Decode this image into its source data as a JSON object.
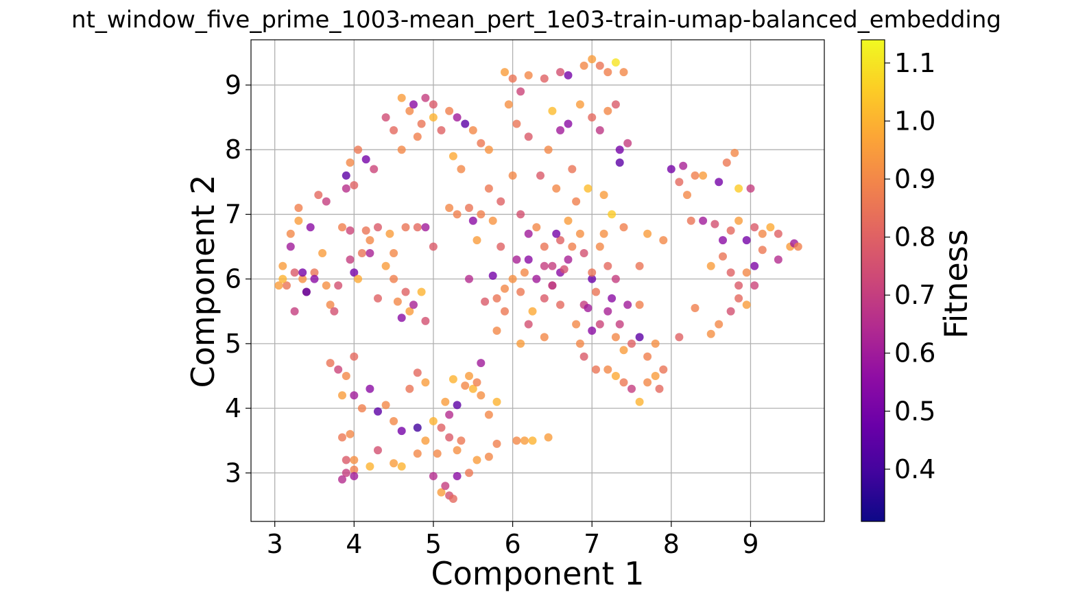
{
  "chart_data": {
    "type": "scatter",
    "title": "nt_window_five_prime_1003-mean_pert_1e03-train-umap-balanced_embedding",
    "xlabel": "Component 1",
    "ylabel": "Component 2",
    "xlim": [
      2.7,
      9.93
    ],
    "ylim": [
      2.25,
      9.7
    ],
    "xticks": [
      "3",
      "4",
      "5",
      "6",
      "7",
      "8",
      "9"
    ],
    "yticks": [
      "3",
      "4",
      "5",
      "6",
      "7",
      "8",
      "9"
    ],
    "grid": true,
    "colormap": "plasma",
    "colorbar": {
      "label": "Fitness",
      "range": [
        0.31,
        1.14
      ],
      "ticks": [
        "0.4",
        "0.5",
        "0.6",
        "0.7",
        "0.8",
        "0.9",
        "1.0",
        "1.1"
      ]
    },
    "points": [
      [
        3.1,
        6.2,
        0.95
      ],
      [
        3.15,
        5.9,
        0.85
      ],
      [
        3.25,
        6.1,
        0.78
      ],
      [
        3.3,
        7.1,
        0.88
      ],
      [
        3.35,
        6.0,
        0.92
      ],
      [
        3.4,
        5.8,
        0.8
      ],
      [
        3.45,
        6.8,
        0.55
      ],
      [
        3.5,
        6.1,
        0.85
      ],
      [
        3.6,
        6.4,
        0.95
      ],
      [
        3.7,
        5.6,
        0.9
      ],
      [
        3.8,
        5.9,
        0.75
      ],
      [
        3.85,
        6.8,
        0.88
      ],
      [
        3.95,
        6.3,
        0.7
      ],
      [
        4.0,
        6.1,
        0.5
      ],
      [
        4.05,
        6.0,
        0.98
      ],
      [
        4.1,
        6.4,
        0.85
      ],
      [
        4.2,
        6.6,
        0.9
      ],
      [
        4.3,
        5.7,
        0.8
      ],
      [
        4.4,
        6.2,
        0.95
      ],
      [
        4.5,
        6.0,
        0.88
      ],
      [
        3.2,
        6.5,
        0.6
      ],
      [
        3.55,
        7.3,
        0.82
      ],
      [
        3.65,
        7.2,
        0.7
      ],
      [
        3.9,
        7.6,
        0.45
      ],
      [
        3.95,
        7.8,
        0.9
      ],
      [
        4.05,
        8.0,
        0.86
      ],
      [
        4.15,
        7.85,
        0.5
      ],
      [
        4.25,
        7.7,
        0.72
      ],
      [
        3.9,
        7.4,
        0.66
      ],
      [
        4.0,
        7.45,
        0.8
      ],
      [
        4.4,
        8.5,
        0.74
      ],
      [
        4.6,
        8.8,
        0.95
      ],
      [
        4.7,
        8.6,
        0.9
      ],
      [
        4.75,
        8.7,
        0.55
      ],
      [
        4.85,
        8.4,
        0.85
      ],
      [
        4.9,
        8.8,
        0.7
      ],
      [
        5.0,
        8.5,
        1.0
      ],
      [
        5.1,
        8.3,
        0.8
      ],
      [
        5.2,
        8.6,
        0.88
      ],
      [
        5.3,
        8.5,
        0.6
      ],
      [
        5.4,
        8.4,
        0.45
      ],
      [
        5.5,
        8.3,
        0.9
      ],
      [
        5.6,
        8.1,
        0.86
      ],
      [
        5.7,
        8.0,
        0.93
      ],
      [
        4.5,
        8.3,
        0.82
      ],
      [
        4.6,
        8.0,
        0.9
      ],
      [
        4.8,
        8.2,
        0.88
      ],
      [
        5.0,
        8.7,
        0.78
      ],
      [
        5.25,
        7.9,
        0.98
      ],
      [
        5.35,
        7.7,
        0.9
      ],
      [
        5.9,
        9.2,
        0.95
      ],
      [
        6.0,
        9.1,
        0.85
      ],
      [
        6.1,
        8.9,
        0.72
      ],
      [
        6.2,
        9.15,
        0.9
      ],
      [
        6.4,
        9.1,
        0.8
      ],
      [
        6.6,
        9.2,
        0.75
      ],
      [
        6.7,
        9.15,
        0.5
      ],
      [
        6.9,
        9.3,
        0.9
      ],
      [
        7.0,
        9.4,
        0.95
      ],
      [
        7.1,
        9.3,
        0.85
      ],
      [
        7.2,
        9.2,
        0.88
      ],
      [
        7.3,
        9.35,
        1.1
      ],
      [
        7.4,
        9.2,
        0.9
      ],
      [
        6.5,
        8.6,
        1.02
      ],
      [
        6.6,
        8.3,
        0.6
      ],
      [
        6.7,
        8.4,
        0.55
      ],
      [
        6.85,
        8.7,
        0.95
      ],
      [
        7.0,
        8.5,
        0.82
      ],
      [
        7.1,
        8.3,
        0.68
      ],
      [
        7.2,
        8.6,
        0.9
      ],
      [
        7.3,
        8.7,
        0.78
      ],
      [
        7.35,
        8.0,
        0.5
      ],
      [
        7.35,
        7.8,
        0.45
      ],
      [
        7.45,
        8.1,
        0.7
      ],
      [
        5.95,
        8.7,
        0.92
      ],
      [
        6.05,
        8.4,
        0.85
      ],
      [
        6.2,
        8.2,
        0.78
      ],
      [
        6.45,
        8.0,
        0.9
      ],
      [
        5.7,
        7.4,
        0.86
      ],
      [
        5.85,
        7.2,
        0.8
      ],
      [
        6.0,
        7.6,
        0.9
      ],
      [
        6.1,
        7.0,
        0.75
      ],
      [
        6.2,
        6.7,
        0.6
      ],
      [
        6.3,
        6.8,
        0.9
      ],
      [
        6.4,
        6.5,
        0.85
      ],
      [
        6.5,
        6.2,
        0.7
      ],
      [
        6.6,
        6.1,
        0.55
      ],
      [
        6.7,
        6.9,
        0.95
      ],
      [
        6.8,
        7.2,
        0.88
      ],
      [
        6.9,
        6.4,
        0.75
      ],
      [
        7.0,
        6.0,
        0.48
      ],
      [
        7.1,
        6.5,
        0.9
      ],
      [
        7.2,
        6.2,
        0.82
      ],
      [
        7.3,
        6.0,
        0.7
      ],
      [
        6.0,
        6.0,
        0.92
      ],
      [
        6.1,
        5.8,
        0.86
      ],
      [
        6.25,
        5.5,
        0.98
      ],
      [
        6.4,
        5.7,
        0.78
      ],
      [
        6.5,
        5.9,
        0.9
      ],
      [
        6.6,
        6.6,
        0.8
      ],
      [
        6.7,
        6.3,
        0.62
      ],
      [
        6.8,
        5.3,
        0.9
      ],
      [
        6.9,
        5.6,
        0.7
      ],
      [
        7.05,
        5.8,
        0.85
      ],
      [
        7.15,
        6.7,
        0.92
      ],
      [
        7.25,
        7.0,
        1.05
      ],
      [
        7.4,
        6.8,
        0.88
      ],
      [
        6.35,
        7.6,
        0.78
      ],
      [
        6.55,
        7.4,
        0.9
      ],
      [
        6.75,
        7.7,
        0.85
      ],
      [
        6.95,
        7.4,
        1.02
      ],
      [
        7.15,
        7.3,
        0.95
      ],
      [
        5.85,
        6.5,
        0.8
      ],
      [
        5.75,
        6.9,
        0.93
      ],
      [
        5.6,
        7.0,
        0.88
      ],
      [
        5.55,
        6.6,
        0.95
      ],
      [
        5.45,
        6.0,
        0.65
      ],
      [
        5.65,
        5.65,
        0.78
      ],
      [
        5.8,
        5.2,
        0.9
      ],
      [
        5.9,
        5.5,
        0.86
      ],
      [
        7.0,
        5.2,
        0.55
      ],
      [
        7.1,
        5.3,
        0.72
      ],
      [
        7.2,
        5.5,
        0.62
      ],
      [
        7.3,
        5.1,
        0.9
      ],
      [
        7.4,
        4.9,
        0.95
      ],
      [
        7.5,
        5.0,
        0.8
      ],
      [
        7.6,
        5.1,
        0.45
      ],
      [
        7.7,
        4.8,
        0.88
      ],
      [
        7.8,
        5.0,
        0.92
      ],
      [
        7.9,
        4.6,
        0.85
      ],
      [
        7.2,
        4.6,
        0.9
      ],
      [
        7.3,
        4.5,
        0.98
      ],
      [
        7.4,
        4.4,
        0.86
      ],
      [
        7.5,
        4.3,
        0.7
      ],
      [
        7.6,
        4.1,
        1.0
      ],
      [
        7.7,
        4.4,
        0.9
      ],
      [
        7.8,
        4.5,
        0.95
      ],
      [
        7.85,
        4.3,
        0.82
      ],
      [
        6.9,
        4.8,
        0.78
      ],
      [
        7.05,
        4.6,
        0.85
      ],
      [
        8.0,
        7.7,
        0.5
      ],
      [
        8.1,
        7.5,
        0.82
      ],
      [
        8.2,
        7.3,
        0.9
      ],
      [
        8.3,
        7.6,
        0.88
      ],
      [
        8.15,
        7.75,
        0.62
      ],
      [
        8.4,
        7.6,
        0.95
      ],
      [
        8.6,
        7.5,
        0.5
      ],
      [
        8.7,
        7.8,
        0.86
      ],
      [
        8.8,
        7.95,
        0.9
      ],
      [
        8.85,
        7.4,
        1.05
      ],
      [
        9.0,
        7.4,
        0.7
      ],
      [
        8.25,
        6.9,
        0.85
      ],
      [
        8.4,
        6.9,
        0.6
      ],
      [
        8.55,
        6.85,
        0.75
      ],
      [
        8.65,
        6.6,
        0.55
      ],
      [
        8.75,
        6.75,
        0.82
      ],
      [
        8.85,
        6.9,
        0.95
      ],
      [
        8.95,
        6.6,
        0.5
      ],
      [
        9.05,
        6.8,
        0.78
      ],
      [
        9.15,
        6.7,
        0.9
      ],
      [
        9.25,
        6.8,
        0.98
      ],
      [
        9.35,
        6.7,
        0.8
      ],
      [
        9.5,
        6.5,
        0.95
      ],
      [
        9.55,
        6.55,
        0.6
      ],
      [
        9.6,
        6.5,
        0.88
      ],
      [
        8.5,
        6.2,
        0.95
      ],
      [
        8.65,
        6.35,
        0.85
      ],
      [
        8.75,
        6.1,
        0.8
      ],
      [
        8.85,
        5.9,
        0.78
      ],
      [
        8.95,
        6.1,
        0.9
      ],
      [
        9.05,
        6.2,
        0.52
      ],
      [
        9.15,
        6.45,
        0.86
      ],
      [
        9.35,
        6.3,
        0.65
      ],
      [
        8.6,
        5.3,
        0.9
      ],
      [
        8.75,
        5.5,
        0.75
      ],
      [
        8.85,
        5.7,
        0.82
      ],
      [
        8.95,
        5.6,
        0.95
      ],
      [
        8.5,
        5.15,
        0.92
      ],
      [
        8.3,
        5.55,
        0.88
      ],
      [
        8.1,
        5.1,
        0.8
      ],
      [
        9.05,
        5.9,
        0.72
      ],
      [
        7.9,
        6.6,
        0.9
      ],
      [
        7.7,
        6.7,
        0.95
      ],
      [
        7.6,
        6.2,
        0.85
      ],
      [
        3.7,
        4.7,
        0.85
      ],
      [
        3.8,
        4.6,
        0.72
      ],
      [
        3.9,
        4.5,
        0.9
      ],
      [
        4.0,
        4.8,
        0.82
      ],
      [
        3.85,
        4.2,
        0.95
      ],
      [
        4.0,
        4.2,
        0.6
      ],
      [
        4.1,
        4.0,
        0.88
      ],
      [
        4.2,
        4.3,
        0.55
      ],
      [
        4.3,
        3.95,
        0.45
      ],
      [
        4.4,
        4.05,
        0.9
      ],
      [
        3.85,
        3.55,
        0.86
      ],
      [
        3.95,
        3.6,
        0.9
      ],
      [
        3.9,
        3.2,
        0.78
      ],
      [
        4.0,
        3.2,
        0.92
      ],
      [
        3.9,
        3.0,
        0.7
      ],
      [
        4.0,
        3.05,
        0.88
      ],
      [
        3.85,
        2.9,
        0.65
      ],
      [
        4.0,
        2.95,
        0.6
      ],
      [
        4.2,
        3.1,
        1.0
      ],
      [
        4.3,
        3.35,
        0.75
      ],
      [
        4.5,
        3.8,
        0.9
      ],
      [
        4.6,
        3.65,
        0.5
      ],
      [
        4.5,
        3.15,
        0.95
      ],
      [
        4.6,
        3.1,
        1.0
      ],
      [
        4.7,
        4.3,
        0.85
      ],
      [
        4.8,
        3.7,
        0.4
      ],
      [
        4.9,
        3.5,
        0.95
      ],
      [
        4.8,
        3.3,
        0.9
      ],
      [
        5.0,
        3.8,
        1.0
      ],
      [
        5.1,
        3.7,
        0.8
      ],
      [
        5.15,
        4.1,
        0.95
      ],
      [
        5.2,
        3.9,
        0.65
      ],
      [
        5.3,
        4.05,
        0.45
      ],
      [
        5.35,
        3.5,
        0.86
      ],
      [
        5.4,
        4.35,
        0.9
      ],
      [
        5.5,
        4.3,
        1.0
      ],
      [
        5.6,
        4.2,
        0.92
      ],
      [
        5.7,
        3.9,
        0.9
      ],
      [
        5.8,
        4.1,
        1.0
      ],
      [
        5.6,
        4.7,
        0.6
      ],
      [
        5.55,
        4.4,
        0.88
      ],
      [
        5.45,
        4.5,
        0.95
      ],
      [
        5.25,
        4.45,
        1.0
      ],
      [
        5.1,
        2.7,
        0.95
      ],
      [
        5.15,
        2.8,
        0.7
      ],
      [
        5.2,
        2.65,
        0.75
      ],
      [
        5.25,
        2.6,
        0.82
      ],
      [
        5.3,
        2.95,
        0.55
      ],
      [
        5.0,
        2.95,
        0.65
      ],
      [
        5.05,
        3.3,
        0.9
      ],
      [
        5.2,
        3.55,
        0.78
      ],
      [
        5.3,
        3.35,
        0.92
      ],
      [
        5.45,
        3.0,
        0.86
      ],
      [
        5.55,
        3.2,
        0.95
      ],
      [
        5.7,
        3.25,
        0.9
      ],
      [
        5.8,
        3.45,
        0.88
      ],
      [
        6.05,
        3.5,
        0.9
      ],
      [
        6.15,
        3.5,
        0.95
      ],
      [
        6.25,
        3.5,
        1.0
      ],
      [
        6.45,
        3.55,
        0.95
      ],
      [
        4.8,
        4.55,
        0.82
      ],
      [
        4.9,
        4.4,
        0.95
      ],
      [
        4.55,
        5.65,
        0.9
      ],
      [
        4.6,
        5.4,
        0.55
      ],
      [
        4.7,
        5.5,
        0.95
      ],
      [
        4.75,
        5.6,
        0.62
      ],
      [
        4.85,
        5.8,
        1.0
      ],
      [
        4.9,
        5.35,
        0.75
      ],
      [
        4.65,
        5.8,
        0.8
      ],
      [
        4.5,
        6.4,
        0.9
      ],
      [
        4.65,
        6.8,
        0.85
      ],
      [
        4.8,
        6.8,
        0.82
      ],
      [
        4.9,
        6.8,
        0.6
      ],
      [
        5.0,
        6.5,
        0.78
      ],
      [
        5.2,
        7.1,
        0.9
      ],
      [
        5.3,
        7.0,
        0.88
      ],
      [
        5.45,
        7.1,
        0.85
      ],
      [
        5.5,
        6.9,
        0.55
      ],
      [
        3.35,
        6.1,
        0.5
      ],
      [
        3.4,
        5.8,
        0.45
      ],
      [
        3.5,
        6.0,
        0.55
      ],
      [
        3.75,
        5.5,
        0.75
      ],
      [
        3.65,
        5.9,
        0.92
      ],
      [
        3.3,
        6.9,
        0.95
      ],
      [
        3.2,
        6.7,
        0.9
      ],
      [
        3.05,
        5.9,
        0.95
      ],
      [
        3.1,
        6.0,
        1.0
      ],
      [
        3.25,
        5.5,
        0.7
      ],
      [
        4.3,
        6.8,
        0.78
      ],
      [
        4.2,
        6.4,
        0.62
      ],
      [
        4.45,
        6.7,
        0.95
      ],
      [
        4.15,
        6.75,
        0.85
      ],
      [
        3.95,
        6.75,
        0.72
      ],
      [
        6.2,
        6.3,
        0.55
      ],
      [
        6.3,
        6.0,
        0.6
      ],
      [
        6.4,
        6.2,
        0.7
      ],
      [
        6.5,
        5.9,
        0.65
      ],
      [
        6.05,
        6.3,
        0.62
      ],
      [
        6.15,
        6.1,
        0.9
      ],
      [
        6.55,
        6.7,
        0.5
      ],
      [
        6.75,
        6.5,
        0.88
      ],
      [
        6.65,
        6.15,
        0.75
      ],
      [
        6.85,
        6.7,
        0.92
      ],
      [
        7.0,
        6.1,
        0.85
      ],
      [
        7.25,
        5.7,
        0.55
      ],
      [
        7.35,
        5.3,
        0.7
      ],
      [
        7.45,
        5.6,
        0.6
      ],
      [
        7.6,
        5.6,
        0.88
      ],
      [
        5.8,
        5.7,
        0.85
      ],
      [
        5.75,
        6.05,
        0.5
      ],
      [
        5.9,
        5.85,
        0.9
      ],
      [
        6.85,
        5.0,
        0.9
      ],
      [
        6.95,
        5.55,
        0.6
      ],
      [
        6.6,
        5.6,
        0.82
      ],
      [
        6.4,
        5.1,
        0.9
      ],
      [
        6.2,
        5.3,
        0.75
      ],
      [
        6.1,
        5.0,
        0.95
      ]
    ]
  }
}
